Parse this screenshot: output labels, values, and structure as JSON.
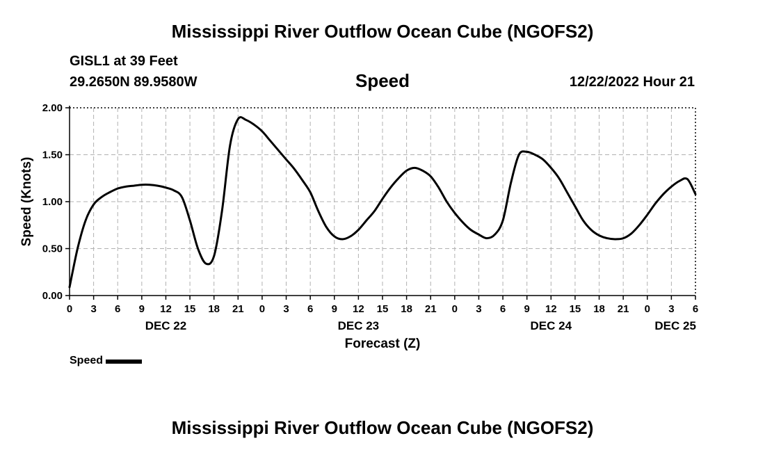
{
  "header": {
    "title": "Mississippi River Outflow Ocean Cube (NGOFS2)",
    "station": "GISL1 at 39 Feet",
    "coords": "29.2650N  89.9580W",
    "parameter": "Speed",
    "datetime": "12/22/2022 Hour 21"
  },
  "footer": {
    "title": "Mississippi River Outflow Ocean Cube (NGOFS2)"
  },
  "legend": {
    "label": "Speed"
  },
  "chart_data": {
    "type": "line",
    "title": "Speed",
    "ylabel": "Speed (Knots)",
    "xlabel": "Forecast (Z)",
    "xlim": [
      0,
      78
    ],
    "ylim": [
      0,
      2
    ],
    "grid": true,
    "y_ticks": [
      0,
      0.5,
      1,
      1.5,
      2
    ],
    "y_tick_labels": [
      "0.00",
      "0.50",
      "1.00",
      "1.50",
      "2.00"
    ],
    "x_tick_hours": [
      0,
      3,
      6,
      9,
      12,
      15,
      18,
      21,
      24,
      27,
      30,
      33,
      36,
      39,
      42,
      45,
      48,
      51,
      54,
      57,
      60,
      63,
      66,
      69,
      72,
      75,
      78
    ],
    "x_tick_labels": [
      "0",
      "3",
      "6",
      "9",
      "12",
      "15",
      "18",
      "21",
      "0",
      "3",
      "6",
      "9",
      "12",
      "15",
      "18",
      "21",
      "0",
      "3",
      "6",
      "9",
      "12",
      "15",
      "18",
      "21",
      "0",
      "3",
      "6"
    ],
    "day_labels": [
      {
        "hour": 12,
        "label": "DEC 22"
      },
      {
        "hour": 36,
        "label": "DEC 23"
      },
      {
        "hour": 60,
        "label": "DEC 24"
      },
      {
        "hour": 75.5,
        "label": "DEC 25"
      }
    ],
    "series": [
      {
        "name": "Speed",
        "color": "#000000",
        "x": [
          0,
          1,
          2,
          3,
          4,
          5,
          6,
          7,
          8,
          9,
          10,
          11,
          12,
          13,
          14,
          15,
          16,
          17,
          18,
          19,
          20,
          21,
          22,
          23,
          24,
          25,
          26,
          27,
          28,
          29,
          30,
          31,
          32,
          33,
          34,
          35,
          36,
          37,
          38,
          39,
          40,
          41,
          42,
          43,
          44,
          45,
          46,
          47,
          48,
          49,
          50,
          51,
          52,
          53,
          54,
          55,
          56,
          57,
          58,
          59,
          60,
          61,
          62,
          63,
          64,
          65,
          66,
          67,
          68,
          69,
          70,
          71,
          72,
          73,
          74,
          75,
          76,
          77,
          78
        ],
        "values": [
          0.09,
          0.5,
          0.8,
          0.97,
          1.05,
          1.1,
          1.14,
          1.16,
          1.17,
          1.18,
          1.18,
          1.17,
          1.15,
          1.12,
          1.05,
          0.8,
          0.5,
          0.34,
          0.42,
          0.9,
          1.6,
          1.88,
          1.87,
          1.82,
          1.75,
          1.65,
          1.55,
          1.45,
          1.35,
          1.23,
          1.1,
          0.9,
          0.73,
          0.63,
          0.6,
          0.63,
          0.7,
          0.8,
          0.9,
          1.03,
          1.15,
          1.25,
          1.33,
          1.36,
          1.33,
          1.27,
          1.15,
          1.0,
          0.88,
          0.78,
          0.7,
          0.65,
          0.61,
          0.65,
          0.8,
          1.2,
          1.5,
          1.53,
          1.5,
          1.45,
          1.36,
          1.25,
          1.1,
          0.95,
          0.8,
          0.7,
          0.64,
          0.61,
          0.6,
          0.61,
          0.66,
          0.75,
          0.86,
          0.98,
          1.08,
          1.16,
          1.22,
          1.24,
          1.08
        ]
      }
    ]
  }
}
